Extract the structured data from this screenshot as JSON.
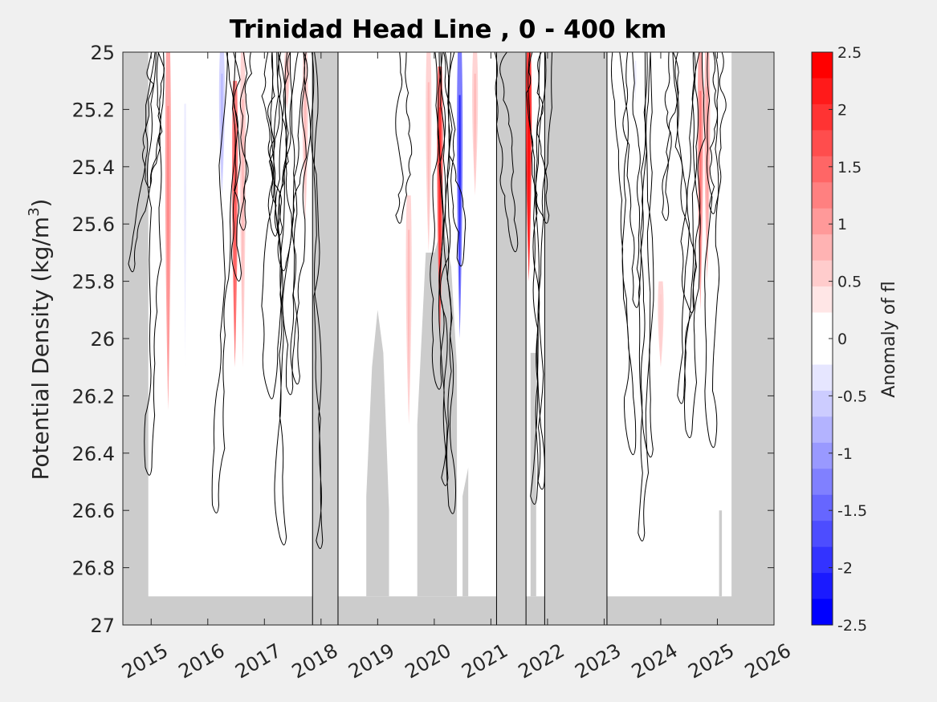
{
  "chart_data": {
    "type": "heatmap",
    "title": "Trinidad Head Line , 0 - 400 km",
    "xlabel": "",
    "ylabel": "Potential Density (kg/m",
    "ylabel_sup": "3",
    "ylabel_close": ")",
    "xlim": [
      2014.5,
      2026.0
    ],
    "ylim": [
      25.0,
      27.0
    ],
    "y_reversed": true,
    "x_ticks": [
      "2015",
      "2016",
      "2017",
      "2018",
      "2019",
      "2020",
      "2021",
      "2022",
      "2023",
      "2024",
      "2025",
      "2026"
    ],
    "y_ticks": [
      "25",
      "25.2",
      "25.4",
      "25.6",
      "25.8",
      "26",
      "26.2",
      "26.4",
      "26.6",
      "26.8",
      "27"
    ],
    "colorbar": {
      "label": "Anomaly of fl",
      "range": [
        -2.5,
        2.5
      ],
      "step": 0.25,
      "ticks": [
        "2.5",
        "2",
        "1.5",
        "1",
        "0.5",
        "0",
        "-0.5",
        "-1",
        "-1.5",
        "-2",
        "-2.5"
      ],
      "colors_high_to_low": [
        "#ff0000",
        "#ff1a1a",
        "#ff3333",
        "#ff4d4d",
        "#ff6666",
        "#ff8080",
        "#ff9999",
        "#ffb3b3",
        "#ffcccc",
        "#ffe6e6",
        "#ffffff",
        "#ffffff",
        "#e6e6ff",
        "#ccccff",
        "#b3b3ff",
        "#9999ff",
        "#8080ff",
        "#6666ff",
        "#4d4dff",
        "#3333ff",
        "#1a1aff",
        "#0000ff"
      ]
    },
    "no_data_color": "#cccccc",
    "no_data_bottom_band": [
      26.9,
      27.0
    ],
    "no_data_columns": [
      {
        "x": [
          2014.5,
          2014.95
        ]
      },
      {
        "x": [
          2017.85,
          2018.3
        ],
        "outlined": true
      },
      {
        "x": [
          2021.1,
          2021.62
        ],
        "outlined": true
      },
      {
        "x": [
          2021.95,
          2023.05
        ],
        "outlined": true
      },
      {
        "x": [
          2025.25,
          2026.0
        ]
      }
    ],
    "no_data_shapes": [
      {
        "x": [
          2018.8,
          2018.9,
          2019.0,
          2019.1,
          2019.2,
          2019.2,
          2018.8
        ],
        "y": [
          26.55,
          26.1,
          25.9,
          26.05,
          26.6,
          26.9,
          26.9
        ]
      },
      {
        "x": [
          2019.7,
          2019.85,
          2020.0,
          2020.15,
          2020.3,
          2020.4,
          2020.4,
          2019.7
        ],
        "y": [
          26.3,
          25.7,
          25.7,
          25.6,
          25.75,
          26.1,
          26.9,
          26.9
        ]
      },
      {
        "x": [
          2020.5,
          2020.6,
          2020.6,
          2020.5
        ],
        "y": [
          26.55,
          26.45,
          26.9,
          26.9
        ]
      },
      {
        "x": [
          2021.7,
          2021.8,
          2021.8,
          2021.7
        ],
        "y": [
          26.05,
          26.05,
          26.9,
          26.9
        ]
      },
      {
        "x": [
          2025.03,
          2025.08,
          2025.08,
          2025.03
        ],
        "y": [
          26.6,
          26.6,
          26.9,
          26.9
        ]
      }
    ],
    "anomaly_plumes": [
      {
        "x": 2015.3,
        "y": [
          25.0,
          26.25
        ],
        "value": 0.8,
        "width": 0.12
      },
      {
        "x": 2015.6,
        "y": [
          25.0,
          26.2
        ],
        "value": -0.4,
        "width": 0.12
      },
      {
        "x": 2016.25,
        "y": [
          25.0,
          25.5
        ],
        "value": -0.9,
        "width": 0.12
      },
      {
        "x": 2016.48,
        "y": [
          25.1,
          26.1
        ],
        "value": 1.3,
        "width": 0.12
      },
      {
        "x": 2016.62,
        "y": [
          25.0,
          26.1
        ],
        "value": 0.4,
        "width": 0.12
      },
      {
        "x": 2017.4,
        "y": [
          25.0,
          25.2
        ],
        "value": 0.5,
        "width": 0.12
      },
      {
        "x": 2017.72,
        "y": [
          25.0,
          25.6
        ],
        "value": 0.4,
        "width": 0.12
      },
      {
        "x": 2019.55,
        "y": [
          25.5,
          26.3
        ],
        "value": 0.5,
        "width": 0.12
      },
      {
        "x": 2019.9,
        "y": [
          25.0,
          25.7
        ],
        "value": 0.5,
        "width": 0.12
      },
      {
        "x": 2020.1,
        "y": [
          25.05,
          26.0
        ],
        "value": 1.6,
        "width": 0.12
      },
      {
        "x": 2020.45,
        "y": [
          25.0,
          26.0
        ],
        "value": -2.0,
        "width": 0.12
      },
      {
        "x": 2020.72,
        "y": [
          25.0,
          25.5
        ],
        "value": 0.5,
        "width": 0.12
      },
      {
        "x": 2021.67,
        "y": [
          25.0,
          25.8
        ],
        "value": 2.2,
        "width": 0.12
      },
      {
        "x": 2023.55,
        "y": [
          25.0,
          25.2
        ],
        "value": -0.5,
        "width": 0.12
      },
      {
        "x": 2024.0,
        "y": [
          25.8,
          26.1
        ],
        "value": 0.3,
        "width": 0.12
      },
      {
        "x": 2024.7,
        "y": [
          25.0,
          25.9
        ],
        "value": 1.0,
        "width": 0.12
      },
      {
        "x": 2024.82,
        "y": [
          25.0,
          25.8
        ],
        "value": 0.6,
        "width": 0.12
      }
    ]
  }
}
